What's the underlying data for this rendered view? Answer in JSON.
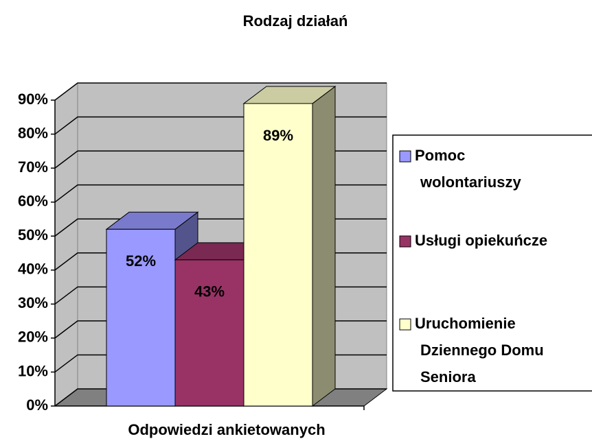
{
  "chart_data": {
    "type": "bar3d",
    "title": "Rodzaj działań",
    "x_label": "Odpowiedzi ankietowanych",
    "categories": [
      "Odpowiedzi ankietowanych"
    ],
    "series": [
      {
        "name": "Pomoc wolontariuszy",
        "color": "#9999ff",
        "values": [
          52
        ],
        "value_labels": [
          "52%"
        ]
      },
      {
        "name": "Usługi opiekuńcze",
        "color": "#993366",
        "values": [
          43
        ],
        "value_labels": [
          "43%"
        ]
      },
      {
        "name": "Uruchomienie Dziennego Domu Seniora",
        "color": "#ffffcc",
        "values": [
          89
        ],
        "value_labels": [
          "89%"
        ]
      }
    ],
    "ylim": [
      0,
      90
    ],
    "yticks": [
      {
        "value": 0,
        "label": "0%"
      },
      {
        "value": 10,
        "label": "10%"
      },
      {
        "value": 20,
        "label": "20%"
      },
      {
        "value": 30,
        "label": "30%"
      },
      {
        "value": 40,
        "label": "40%"
      },
      {
        "value": 50,
        "label": "50%"
      },
      {
        "value": 60,
        "label": "60%"
      },
      {
        "value": 70,
        "label": "70%"
      },
      {
        "value": 80,
        "label": "80%"
      },
      {
        "value": 90,
        "label": "90%"
      }
    ],
    "grid": true,
    "legend": "right"
  }
}
